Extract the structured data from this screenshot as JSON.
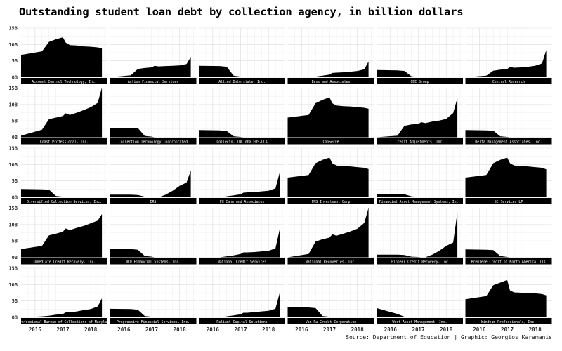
{
  "title": "Outstanding student loan debt by collection agency, in billion dollars",
  "source": "Source: Department of Education | Graphic: Georgios Karamanis",
  "chart_data": {
    "type": "area",
    "title": "Outstanding student loan debt by collection agency, in billion dollars",
    "y_tick_labels": [
      "0B",
      "5B",
      "10B",
      "15B"
    ],
    "ylim": [
      0,
      15
    ],
    "x_tick_labels": [
      "2016",
      "2017",
      "2018"
    ],
    "xlim": [
      2015.5,
      2018.6
    ],
    "grid": true,
    "fill_color": "#000000",
    "label_background": "#000000",
    "panels": [
      {
        "name": "Account Control Technology, Inc.",
        "x": [
          2015.5,
          2016.25,
          2016.5,
          2016.75,
          2017.0,
          2017.1,
          2017.25,
          2017.5,
          2017.75,
          2018.0,
          2018.25,
          2018.4
        ],
        "y": [
          6.8,
          7.9,
          10.8,
          11.6,
          12.2,
          10.6,
          9.8,
          9.7,
          9.4,
          9.3,
          9.1,
          8.8
        ]
      },
      {
        "name": "Action Financial Services",
        "x": [
          2015.5,
          2016.25,
          2016.5,
          2016.75,
          2017.0,
          2017.1,
          2017.25,
          2017.5,
          2017.75,
          2018.0,
          2018.25,
          2018.4
        ],
        "y": [
          0,
          0.6,
          2.5,
          2.8,
          3.0,
          3.5,
          3.3,
          3.4,
          3.5,
          3.6,
          4.0,
          6.2
        ]
      },
      {
        "name": "Allied Interstate, Inc.",
        "x": [
          2015.5,
          2016.25,
          2016.5,
          2016.75,
          2017.0,
          2017.1,
          2017.25,
          2017.5,
          2017.75,
          2018.0,
          2018.25,
          2018.4
        ],
        "y": [
          3.5,
          3.4,
          3.2,
          0.5,
          0.2,
          0,
          0,
          0,
          0,
          0,
          0,
          0
        ]
      },
      {
        "name": "Bass and Associates",
        "x": [
          2015.5,
          2016.25,
          2016.5,
          2016.75,
          2017.0,
          2017.1,
          2017.25,
          2017.5,
          2017.75,
          2018.0,
          2018.25,
          2018.4
        ],
        "y": [
          0,
          0,
          0.2,
          0.5,
          0.8,
          1.3,
          1.4,
          1.5,
          1.7,
          1.9,
          2.4,
          4.8
        ]
      },
      {
        "name": "CBE Group",
        "x": [
          2015.5,
          2016.25,
          2016.5,
          2016.75,
          2017.0,
          2017.1,
          2017.25,
          2017.5,
          2017.75,
          2018.0,
          2018.25,
          2018.4
        ],
        "y": [
          2.2,
          2.1,
          1.9,
          0.3,
          0.1,
          0,
          0,
          0,
          0,
          0,
          0,
          0
        ]
      },
      {
        "name": "Central Research",
        "x": [
          2015.5,
          2016.25,
          2016.5,
          2016.75,
          2017.0,
          2017.1,
          2017.25,
          2017.5,
          2017.75,
          2018.0,
          2018.25,
          2018.4
        ],
        "y": [
          0,
          0.5,
          2.0,
          2.3,
          2.5,
          3.1,
          2.9,
          3.0,
          3.2,
          3.5,
          4.2,
          8.3
        ]
      },
      {
        "name": "Coast Professional, Inc.",
        "x": [
          2015.5,
          2016.25,
          2016.5,
          2016.75,
          2017.0,
          2017.1,
          2017.25,
          2017.5,
          2017.75,
          2018.0,
          2018.25,
          2018.4
        ],
        "y": [
          0.5,
          2.3,
          5.5,
          6.0,
          6.5,
          7.3,
          6.8,
          7.5,
          8.3,
          9.2,
          10.5,
          15.2
        ]
      },
      {
        "name": "Collection Technology Incorporated",
        "x": [
          2015.5,
          2016.25,
          2016.5,
          2016.75,
          2017.0,
          2017.1,
          2017.25,
          2017.5,
          2017.75,
          2018.0,
          2018.25,
          2018.4
        ],
        "y": [
          2.9,
          2.9,
          2.8,
          0.4,
          0.2,
          0,
          0,
          0,
          0,
          0,
          0,
          0
        ]
      },
      {
        "name": "Collecto, INC dba EOS-CCA",
        "x": [
          2015.5,
          2016.25,
          2016.5,
          2016.75,
          2017.0,
          2017.1,
          2017.25,
          2017.5,
          2017.75,
          2018.0,
          2018.25,
          2018.4
        ],
        "y": [
          2.2,
          2.1,
          1.9,
          0.3,
          0.1,
          0,
          0,
          0,
          0,
          0,
          0,
          0
        ]
      },
      {
        "name": "ConServe",
        "x": [
          2015.5,
          2016.25,
          2016.5,
          2016.75,
          2017.0,
          2017.1,
          2017.25,
          2017.5,
          2017.75,
          2018.0,
          2018.25,
          2018.4
        ],
        "y": [
          6.0,
          6.8,
          10.4,
          11.4,
          12.2,
          10.4,
          9.7,
          9.5,
          9.4,
          9.2,
          9.0,
          8.7
        ]
      },
      {
        "name": "Credit Adjustments, Inc.",
        "x": [
          2015.5,
          2016.25,
          2016.5,
          2016.75,
          2017.0,
          2017.1,
          2017.25,
          2017.5,
          2017.75,
          2018.0,
          2018.25,
          2018.4
        ],
        "y": [
          0,
          0.5,
          3.5,
          3.9,
          4.0,
          4.6,
          4.3,
          4.8,
          5.1,
          5.6,
          7.4,
          12.0
        ]
      },
      {
        "name": "Delta Management Associates, Inc.",
        "x": [
          2015.5,
          2016.25,
          2016.5,
          2016.75,
          2017.0,
          2017.1,
          2017.25,
          2017.5,
          2017.75,
          2018.0,
          2018.25,
          2018.4
        ],
        "y": [
          2.2,
          2.1,
          2.0,
          0.3,
          0.1,
          0,
          0,
          0,
          0,
          0,
          0,
          0
        ]
      },
      {
        "name": "Diversified Collection Services, Inc.",
        "x": [
          2015.5,
          2016.25,
          2016.5,
          2016.75,
          2017.0,
          2017.1,
          2017.25,
          2017.5,
          2017.75,
          2018.0,
          2018.25,
          2018.4
        ],
        "y": [
          2.5,
          2.4,
          2.3,
          0.4,
          0.2,
          0,
          0,
          0,
          0,
          0,
          0,
          0
        ]
      },
      {
        "name": "ERS",
        "x": [
          2015.5,
          2016.25,
          2016.5,
          2016.75,
          2017.0,
          2017.1,
          2017.25,
          2017.5,
          2017.75,
          2018.0,
          2018.25,
          2018.4
        ],
        "y": [
          0.8,
          0.8,
          0.7,
          0.2,
          0.1,
          0,
          0,
          0.8,
          2.0,
          3.5,
          4.5,
          8.2
        ]
      },
      {
        "name": "FH Cann and Associates",
        "x": [
          2015.5,
          2016.25,
          2016.5,
          2016.75,
          2017.0,
          2017.1,
          2017.25,
          2017.5,
          2017.75,
          2018.0,
          2018.25,
          2018.4
        ],
        "y": [
          0,
          0,
          0.3,
          0.6,
          0.9,
          1.4,
          1.5,
          1.6,
          1.8,
          2.0,
          2.7,
          7.5
        ]
      },
      {
        "name": "FMS Investment Corp",
        "x": [
          2015.5,
          2016.25,
          2016.5,
          2016.75,
          2017.0,
          2017.1,
          2017.25,
          2017.5,
          2017.75,
          2018.0,
          2018.25,
          2018.4
        ],
        "y": [
          6.0,
          6.8,
          10.4,
          11.4,
          12.1,
          10.4,
          9.7,
          9.5,
          9.4,
          9.2,
          9.0,
          8.6
        ]
      },
      {
        "name": "Financial Asset Management Systems, Inc.",
        "x": [
          2015.5,
          2016.25,
          2016.5,
          2016.75,
          2017.0,
          2017.1,
          2017.25,
          2017.5,
          2017.75,
          2018.0,
          2018.25,
          2018.4
        ],
        "y": [
          1.0,
          1.0,
          0.9,
          0.3,
          0.1,
          0,
          0,
          0,
          0,
          0,
          0,
          0
        ]
      },
      {
        "name": "GC Services LP",
        "x": [
          2015.5,
          2016.25,
          2016.5,
          2016.75,
          2017.0,
          2017.1,
          2017.25,
          2017.5,
          2017.75,
          2018.0,
          2018.25,
          2018.4
        ],
        "y": [
          6.0,
          6.8,
          10.4,
          11.4,
          12.1,
          10.4,
          9.7,
          9.5,
          9.4,
          9.2,
          9.0,
          8.5
        ]
      },
      {
        "name": "Immediate Credit Recovery, Inc.",
        "x": [
          2015.5,
          2016.25,
          2016.5,
          2016.75,
          2017.0,
          2017.1,
          2017.25,
          2017.5,
          2017.75,
          2018.0,
          2018.25,
          2018.4
        ],
        "y": [
          2.5,
          3.5,
          6.7,
          7.2,
          7.8,
          8.8,
          8.3,
          9.0,
          9.6,
          10.4,
          11.2,
          13.2
        ]
      },
      {
        "name": "NCO Financial Systems, Inc.",
        "x": [
          2015.5,
          2016.25,
          2016.5,
          2016.75,
          2017.0,
          2017.1,
          2017.25,
          2017.5,
          2017.75,
          2018.0,
          2018.25,
          2018.4
        ],
        "y": [
          2.5,
          2.5,
          2.3,
          0.4,
          0.2,
          0,
          0,
          0,
          0,
          0,
          0,
          0
        ]
      },
      {
        "name": "National Credit Services",
        "x": [
          2015.5,
          2016.25,
          2016.5,
          2016.75,
          2017.0,
          2017.1,
          2017.25,
          2017.5,
          2017.75,
          2018.0,
          2018.25,
          2018.4
        ],
        "y": [
          0,
          0,
          0.3,
          0.6,
          1.0,
          1.5,
          1.5,
          1.6,
          1.8,
          2.0,
          2.7,
          8.5
        ]
      },
      {
        "name": "National Recoveries, Inc.",
        "x": [
          2015.5,
          2016.25,
          2016.5,
          2016.75,
          2017.0,
          2017.1,
          2017.25,
          2017.5,
          2017.75,
          2018.0,
          2018.25,
          2018.4
        ],
        "y": [
          0,
          1.0,
          4.8,
          5.5,
          6.0,
          7.0,
          6.6,
          7.2,
          7.9,
          8.7,
          10.5,
          15.1
        ]
      },
      {
        "name": "Pioneer Credit Recovery, Inc",
        "x": [
          2015.5,
          2016.25,
          2016.5,
          2016.75,
          2017.0,
          2017.1,
          2017.25,
          2017.5,
          2017.75,
          2018.0,
          2018.25,
          2018.4
        ],
        "y": [
          0.8,
          0.8,
          0.7,
          0.2,
          0.1,
          0,
          0,
          0.8,
          2.0,
          3.5,
          4.5,
          13.8
        ]
      },
      {
        "name": "Premiere Credit of North America, LLC",
        "x": [
          2015.5,
          2016.25,
          2016.5,
          2016.75,
          2017.0,
          2017.1,
          2017.25,
          2017.5,
          2017.75,
          2018.0,
          2018.25,
          2018.4
        ],
        "y": [
          2.4,
          2.3,
          2.2,
          0.4,
          0.1,
          0,
          0,
          0,
          0,
          0,
          0,
          0
        ]
      },
      {
        "name": "Professional Bureau of Collections of Maryland",
        "x": [
          2015.5,
          2016.25,
          2016.5,
          2016.75,
          2017.0,
          2017.1,
          2017.25,
          2017.5,
          2017.75,
          2018.0,
          2018.25,
          2018.4
        ],
        "y": [
          0,
          0.3,
          0.5,
          0.8,
          1.0,
          1.5,
          1.5,
          1.8,
          2.2,
          2.5,
          3.3,
          5.8
        ]
      },
      {
        "name": "Progressive Financial Services, Inc.",
        "x": [
          2015.5,
          2016.25,
          2016.5,
          2016.75,
          2017.0,
          2017.1,
          2017.25,
          2017.5,
          2017.75,
          2018.0,
          2018.25,
          2018.4
        ],
        "y": [
          2.6,
          2.5,
          2.3,
          0.4,
          0.2,
          0,
          0,
          0,
          0,
          0,
          0,
          0
        ]
      },
      {
        "name": "Reliant Capital Solutions",
        "x": [
          2015.5,
          2016.25,
          2016.5,
          2016.75,
          2017.0,
          2017.1,
          2017.25,
          2017.5,
          2017.75,
          2018.0,
          2018.25,
          2018.4
        ],
        "y": [
          0,
          0,
          0.3,
          0.6,
          0.9,
          1.4,
          1.4,
          1.6,
          1.8,
          2.0,
          2.6,
          7.4
        ]
      },
      {
        "name": "Van Ru Credit Corporation",
        "x": [
          2015.5,
          2016.25,
          2016.5,
          2016.75,
          2017.0,
          2017.1,
          2017.25,
          2017.5,
          2017.75,
          2018.0,
          2018.25,
          2018.4
        ],
        "y": [
          3.0,
          3.0,
          2.8,
          0.4,
          0.2,
          0,
          0,
          0,
          0,
          0,
          0,
          0
        ]
      },
      {
        "name": "West Asset Management, Inc.",
        "x": [
          2015.5,
          2016.25,
          2016.5,
          2016.75,
          2017.0,
          2017.1,
          2017.25,
          2017.5,
          2017.75,
          2018.0,
          2018.25,
          2018.4
        ],
        "y": [
          2.8,
          1.0,
          0.2,
          0.1,
          0,
          0,
          0,
          0,
          0,
          0,
          0,
          0
        ]
      },
      {
        "name": "Windham Professionals, Inc.",
        "x": [
          2015.5,
          2016.25,
          2016.5,
          2016.75,
          2017.0,
          2017.1,
          2017.25,
          2017.5,
          2017.75,
          2018.0,
          2018.25,
          2018.4
        ],
        "y": [
          5.5,
          6.5,
          9.8,
          10.6,
          11.4,
          8.2,
          7.6,
          7.5,
          7.4,
          7.3,
          7.1,
          6.7
        ]
      }
    ]
  }
}
